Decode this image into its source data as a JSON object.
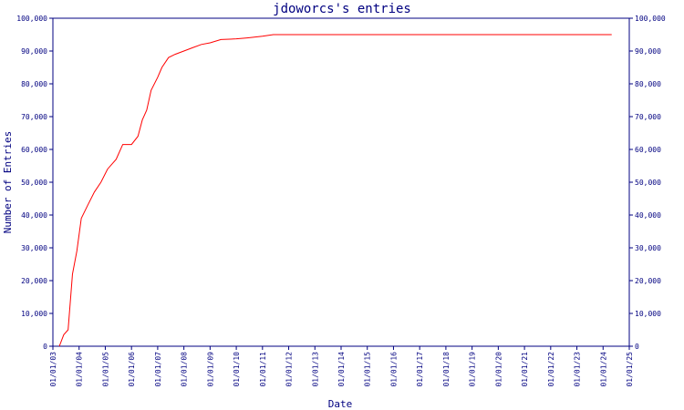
{
  "chart_data": {
    "type": "line",
    "title": "jdoworcs's entries",
    "xlabel": "Date",
    "ylabel": "Number of Entries",
    "x_ticks": [
      "01/01/03",
      "01/01/04",
      "01/01/05",
      "01/01/06",
      "01/01/07",
      "01/01/08",
      "01/01/09",
      "01/01/10",
      "01/01/11",
      "01/01/12",
      "01/01/13",
      "01/01/14",
      "01/01/15",
      "01/01/16",
      "01/01/17",
      "01/01/18",
      "01/01/19",
      "01/01/20",
      "01/01/21",
      "01/01/22",
      "01/01/23",
      "01/01/24",
      "01/01/25"
    ],
    "y_ticks": [
      "0",
      "10,000",
      "20,000",
      "30,000",
      "40,000",
      "50,000",
      "60,000",
      "70,000",
      "80,000",
      "90,000",
      "100,000"
    ],
    "ylim": [
      0,
      100000
    ],
    "xlim": [
      "2003-01-01",
      "2025-01-01"
    ],
    "grid": false,
    "colors": {
      "line": "#ff0000",
      "axis": "#000080",
      "text": "#000080"
    },
    "series": [
      {
        "points": [
          [
            "2003-04-01",
            0
          ],
          [
            "2003-06-01",
            3500
          ],
          [
            "2003-08-01",
            5000
          ],
          [
            "2003-10-01",
            22000
          ],
          [
            "2003-12-01",
            29000
          ],
          [
            "2004-02-01",
            39000
          ],
          [
            "2004-05-01",
            43000
          ],
          [
            "2004-08-01",
            47000
          ],
          [
            "2004-11-01",
            50000
          ],
          [
            "2005-02-01",
            54000
          ],
          [
            "2005-06-01",
            57000
          ],
          [
            "2005-09-01",
            61500
          ],
          [
            "2006-01-01",
            61500
          ],
          [
            "2006-04-01",
            64000
          ],
          [
            "2006-06-01",
            69000
          ],
          [
            "2006-08-01",
            72000
          ],
          [
            "2006-10-01",
            78000
          ],
          [
            "2007-01-01",
            82000
          ],
          [
            "2007-03-01",
            85000
          ],
          [
            "2007-06-01",
            88000
          ],
          [
            "2007-09-01",
            89000
          ],
          [
            "2008-01-01",
            90000
          ],
          [
            "2008-05-01",
            91000
          ],
          [
            "2008-09-01",
            92000
          ],
          [
            "2009-01-01",
            92500
          ],
          [
            "2009-06-01",
            93500
          ],
          [
            "2010-01-01",
            93700
          ],
          [
            "2010-06-01",
            94000
          ],
          [
            "2011-01-01",
            94500
          ],
          [
            "2011-06-01",
            95000
          ],
          [
            "2024-05-01",
            95000
          ]
        ]
      }
    ]
  }
}
